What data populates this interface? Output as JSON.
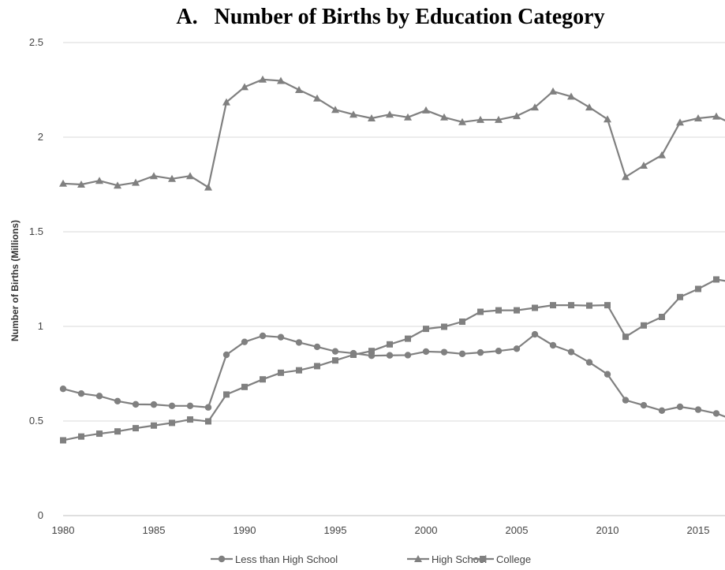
{
  "chart_data": {
    "type": "line",
    "title": "A.   Number of Births by Education Category",
    "ylabel": "Number of Births (Millions)",
    "xlabel": "",
    "ylim": [
      0,
      2.5
    ],
    "xlim": [
      1980,
      2017
    ],
    "y_ticks": [
      "0",
      "0.5",
      "1",
      "1.5",
      "2",
      "2.5"
    ],
    "x_ticks": [
      "1980",
      "1985",
      "1990",
      "1995",
      "2000",
      "2005",
      "2010",
      "2015"
    ],
    "grid": true,
    "legend_position": "bottom",
    "line_color": "#808080",
    "x": [
      1980,
      1981,
      1982,
      1983,
      1984,
      1985,
      1986,
      1987,
      1988,
      1989,
      1990,
      1991,
      1992,
      1993,
      1994,
      1995,
      1996,
      1997,
      1998,
      1999,
      2000,
      2001,
      2002,
      2003,
      2004,
      2005,
      2006,
      2007,
      2008,
      2009,
      2010,
      2011,
      2012,
      2013,
      2014,
      2015,
      2016,
      2017
    ],
    "series": [
      {
        "name": "Less than High School",
        "marker": "circle",
        "values": [
          0.67,
          0.645,
          0.632,
          0.605,
          0.588,
          0.587,
          0.58,
          0.58,
          0.572,
          0.85,
          0.918,
          0.95,
          0.943,
          0.915,
          0.892,
          0.868,
          0.858,
          0.845,
          0.847,
          0.848,
          0.867,
          0.864,
          0.855,
          0.862,
          0.87,
          0.882,
          0.958,
          0.9,
          0.865,
          0.81,
          0.747,
          0.61,
          0.583,
          0.555,
          0.575,
          0.56,
          0.54,
          0.505
        ]
      },
      {
        "name": "High School",
        "marker": "triangle",
        "values": [
          1.755,
          1.75,
          1.77,
          1.745,
          1.76,
          1.795,
          1.78,
          1.795,
          1.735,
          2.185,
          2.265,
          2.305,
          2.298,
          2.25,
          2.205,
          2.145,
          2.12,
          2.1,
          2.12,
          2.105,
          2.142,
          2.105,
          2.08,
          2.092,
          2.092,
          2.112,
          2.158,
          2.242,
          2.215,
          2.158,
          2.095,
          1.79,
          1.85,
          1.905,
          2.078,
          2.1,
          2.11,
          2.065
        ]
      },
      {
        "name": "College",
        "marker": "square",
        "values": [
          0.398,
          0.418,
          0.433,
          0.445,
          0.462,
          0.476,
          0.49,
          0.508,
          0.498,
          0.64,
          0.68,
          0.72,
          0.755,
          0.768,
          0.79,
          0.82,
          0.85,
          0.87,
          0.905,
          0.935,
          0.987,
          0.998,
          1.025,
          1.077,
          1.085,
          1.085,
          1.098,
          1.112,
          1.112,
          1.11,
          1.112,
          0.945,
          1.005,
          1.05,
          1.155,
          1.198,
          1.248,
          1.233
        ]
      }
    ]
  }
}
